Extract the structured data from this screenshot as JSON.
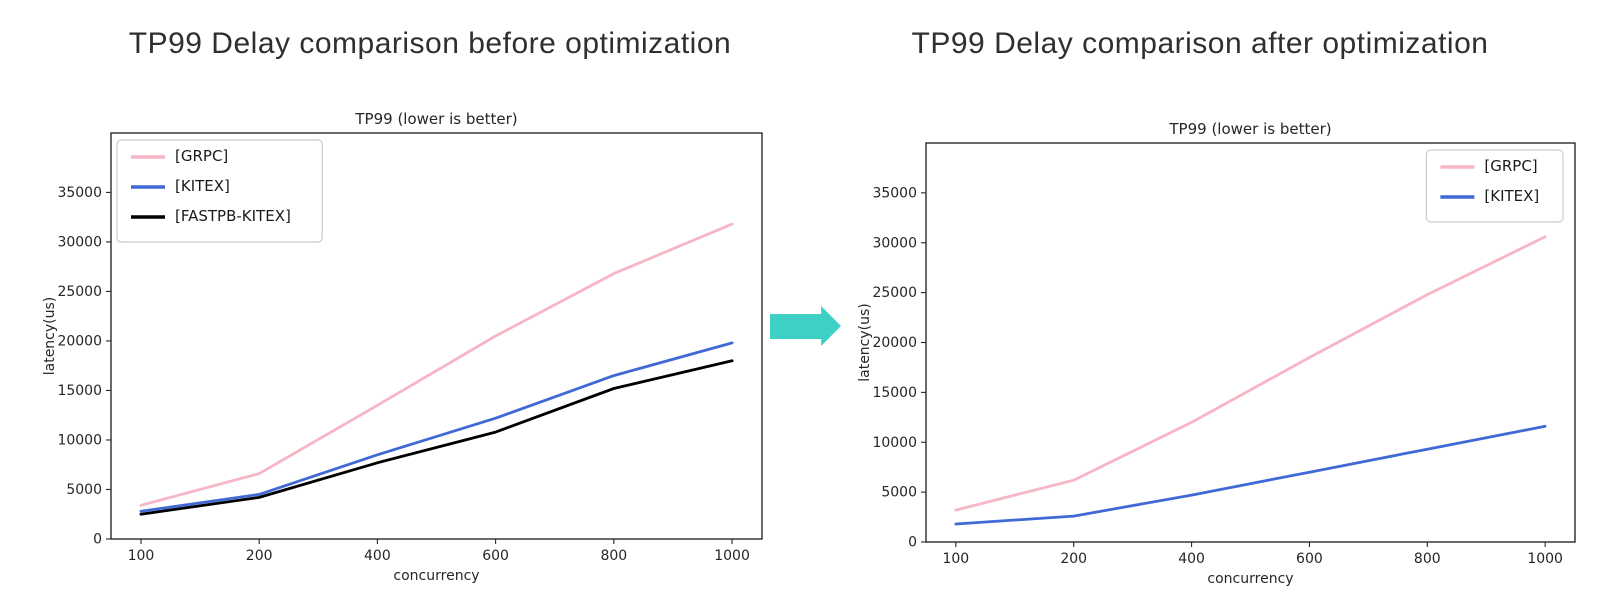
{
  "headings": {
    "left": "TP99 Delay comparison before optimization",
    "right": "TP99 Delay comparison after optimization"
  },
  "arrow": {
    "icon": "right-arrow-icon",
    "color": "#3ed0c4"
  },
  "chart_data": [
    {
      "id": "before",
      "type": "line",
      "title": "TP99 (lower is better)",
      "xlabel": "concurrency",
      "ylabel": "latency(us)",
      "categories": [
        "100",
        "200",
        "400",
        "600",
        "800",
        "1000"
      ],
      "yticks": [
        0,
        5000,
        10000,
        15000,
        20000,
        25000,
        30000,
        35000
      ],
      "ylim": [
        0,
        41000
      ],
      "grid": false,
      "legend_position": "top-left",
      "series": [
        {
          "name": "[GRPC]",
          "color": "#f7b5c5",
          "values": [
            3400,
            6600,
            13500,
            20500,
            26800,
            31800
          ]
        },
        {
          "name": "[KITEX]",
          "color": "#4169d6",
          "values": [
            2800,
            4500,
            8500,
            12200,
            16500,
            19800
          ]
        },
        {
          "name": "[FASTPB-KITEX]",
          "color": "#000000",
          "values": [
            2500,
            4200,
            7700,
            10800,
            15200,
            18000
          ]
        }
      ]
    },
    {
      "id": "after",
      "type": "line",
      "title": "TP99 (lower is better)",
      "xlabel": "concurrency",
      "ylabel": "latency(us)",
      "categories": [
        "100",
        "200",
        "400",
        "600",
        "800",
        "1000"
      ],
      "yticks": [
        0,
        5000,
        10000,
        15000,
        20000,
        25000,
        30000,
        35000
      ],
      "ylim": [
        0,
        40000
      ],
      "grid": false,
      "legend_position": "top-right",
      "series": [
        {
          "name": "[GRPC]",
          "color": "#f7b5c5",
          "values": [
            3200,
            6200,
            12000,
            18500,
            24800,
            30600
          ]
        },
        {
          "name": "[KITEX]",
          "color": "#4169d6",
          "values": [
            1800,
            2600,
            4700,
            7000,
            9300,
            11600
          ]
        }
      ]
    }
  ]
}
